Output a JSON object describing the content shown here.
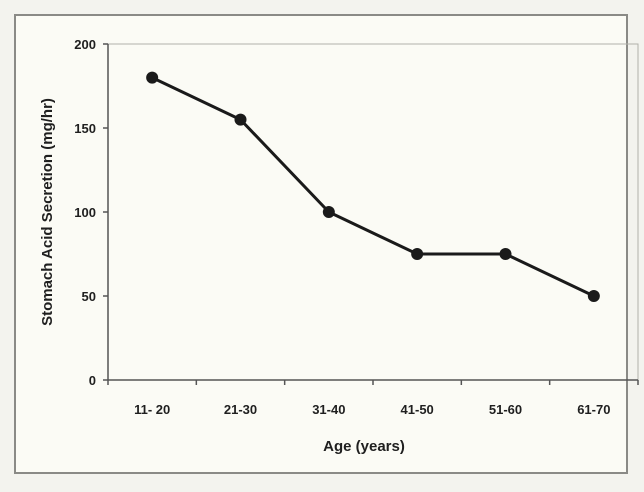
{
  "chart_data": {
    "type": "line",
    "title": "",
    "xlabel": "Age (years)",
    "ylabel": "Stomach Acid Secretion (mg/hr)",
    "categories": [
      "11- 20",
      "21-30",
      "31-40",
      "41-50",
      "51-60",
      "61-70"
    ],
    "series": [
      {
        "values": [
          180,
          155,
          100,
          75,
          75,
          50
        ]
      }
    ],
    "ylim": [
      0,
      200
    ],
    "yticks": [
      0,
      50,
      100,
      150,
      200
    ],
    "grid": false,
    "legend": "none",
    "colors": {
      "line": "#1a1a1a",
      "marker": "#1a1a1a",
      "plot_border": "#b0b0aa",
      "axis": "#555555"
    }
  }
}
